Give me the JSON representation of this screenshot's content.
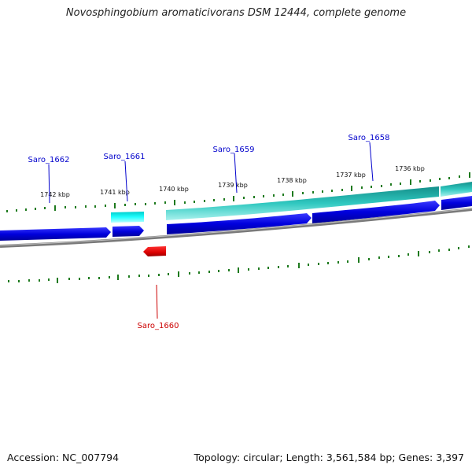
{
  "title": "Novosphingobium aromaticivorans DSM 12444, complete genome",
  "footer": {
    "accession": "Accession: NC_007794",
    "summary": "Topology: circular; Length: 3,561,584 bp; Genes: 3,397"
  },
  "ruler": {
    "labels": [
      "1742 kbp",
      "1741 kbp",
      "1740 kbp",
      "1739 kbp",
      "1738 kbp",
      "1737 kbp",
      "1736 kbp"
    ]
  },
  "genes": [
    {
      "locus": "Saro_1662",
      "strand": "+"
    },
    {
      "locus": "Saro_1661",
      "strand": "+"
    },
    {
      "locus": "Saro_1659",
      "strand": "+"
    },
    {
      "locus": "Saro_1658",
      "strand": "+"
    },
    {
      "locus": "Saro_1660",
      "strand": "-"
    }
  ],
  "colors": {
    "forward_label": "#0000cc",
    "reverse_label": "#cc0000",
    "cds_forward": "#0000dd",
    "cds_reverse": "#dd0000",
    "feature_teal": "#20b2aa",
    "feature_cyan": "#00e5e5",
    "tick": "#1e7a1e",
    "backbone": "#7a7a7a"
  }
}
